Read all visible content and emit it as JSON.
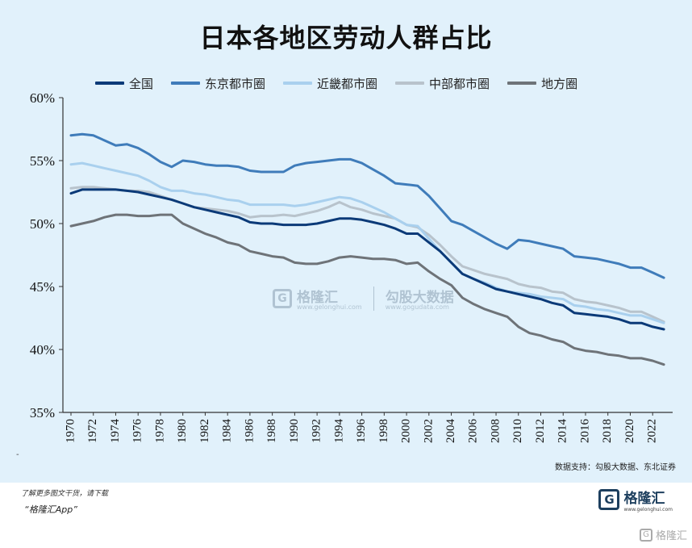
{
  "page": {
    "title": "日本各地区劳动人群占比",
    "source": "数据支持：勾股大数据、东北证券",
    "promo_line1": "了解更多图文干货，请下载",
    "promo_line2": "“格隆汇App”",
    "brand_name": "格隆汇",
    "brand_sub": "www.gelonghui.com",
    "corner_brand": "格隆汇",
    "corner_icon": "G",
    "dash_mark": "-"
  },
  "watermark": {
    "brand_icon": "G",
    "brand_name": "格隆汇",
    "brand_sub": "www.gelonghui.com",
    "second_name": "勾股大数据",
    "second_sub": "www.gogudata.com"
  },
  "chart_data": {
    "type": "line",
    "title": "日本各地区劳动人群占比",
    "xlabel": "",
    "ylabel": "",
    "ylim": [
      35,
      60
    ],
    "yticks": [
      "35%",
      "40%",
      "45%",
      "50%",
      "55%",
      "60%"
    ],
    "ytick_values": [
      35,
      40,
      45,
      50,
      55,
      60
    ],
    "xticks": [
      "1970",
      "1972",
      "1974",
      "1976",
      "1978",
      "1980",
      "1982",
      "1984",
      "1986",
      "1988",
      "1990",
      "1992",
      "1994",
      "1996",
      "1998",
      "2000",
      "2002",
      "2004",
      "2006",
      "2008",
      "2010",
      "2012",
      "2014",
      "2016",
      "2018",
      "2020",
      "2022"
    ],
    "x": [
      1970,
      1971,
      1972,
      1973,
      1974,
      1975,
      1976,
      1977,
      1978,
      1979,
      1980,
      1981,
      1982,
      1983,
      1984,
      1985,
      1986,
      1987,
      1988,
      1989,
      1990,
      1991,
      1992,
      1993,
      1994,
      1995,
      1996,
      1997,
      1998,
      1999,
      2000,
      2001,
      2002,
      2003,
      2004,
      2005,
      2006,
      2007,
      2008,
      2009,
      2010,
      2011,
      2012,
      2013,
      2014,
      2015,
      2016,
      2017,
      2018,
      2019,
      2020,
      2021,
      2022,
      2023
    ],
    "grid": false,
    "legend_position": "top",
    "series": [
      {
        "name": "全国",
        "color": "#0b3a78",
        "values": [
          52.4,
          52.7,
          52.7,
          52.7,
          52.7,
          52.6,
          52.5,
          52.3,
          52.1,
          51.9,
          51.6,
          51.3,
          51.1,
          50.9,
          50.7,
          50.5,
          50.1,
          50.0,
          50.0,
          49.9,
          49.9,
          49.9,
          50.0,
          50.2,
          50.4,
          50.4,
          50.3,
          50.1,
          49.9,
          49.6,
          49.2,
          49.2,
          48.5,
          47.8,
          46.9,
          46.0,
          45.6,
          45.2,
          44.8,
          44.6,
          44.4,
          44.2,
          44.0,
          43.7,
          43.5,
          42.9,
          42.8,
          42.7,
          42.6,
          42.4,
          42.1,
          42.1,
          41.8,
          41.6
        ]
      },
      {
        "name": "东京都市圈",
        "color": "#3f7cba",
        "values": [
          57.0,
          57.1,
          57.0,
          56.6,
          56.2,
          56.3,
          56.0,
          55.5,
          54.9,
          54.5,
          55.0,
          54.9,
          54.7,
          54.6,
          54.6,
          54.5,
          54.2,
          54.1,
          54.1,
          54.1,
          54.6,
          54.8,
          54.9,
          55.0,
          55.1,
          55.1,
          54.8,
          54.3,
          53.8,
          53.2,
          53.1,
          53.0,
          52.2,
          51.2,
          50.2,
          49.9,
          49.4,
          48.9,
          48.4,
          48.0,
          48.7,
          48.6,
          48.4,
          48.2,
          48.0,
          47.4,
          47.3,
          47.2,
          47.0,
          46.8,
          46.5,
          46.5,
          46.1,
          45.7
        ]
      },
      {
        "name": "近畿都市圈",
        "color": "#a9d0ee",
        "values": [
          54.7,
          54.8,
          54.6,
          54.4,
          54.2,
          54.0,
          53.8,
          53.4,
          52.9,
          52.6,
          52.6,
          52.4,
          52.3,
          52.1,
          51.9,
          51.8,
          51.5,
          51.5,
          51.5,
          51.5,
          51.4,
          51.5,
          51.7,
          51.9,
          52.1,
          52.0,
          51.7,
          51.3,
          50.9,
          50.4,
          49.9,
          49.8,
          48.8,
          47.8,
          46.9,
          46.0,
          45.6,
          45.3,
          44.9,
          44.6,
          44.5,
          44.4,
          44.2,
          44.1,
          44.0,
          43.5,
          43.4,
          43.2,
          43.1,
          42.9,
          42.7,
          42.7,
          42.4,
          42.1
        ]
      },
      {
        "name": "中部都市圈",
        "color": "#b8c3cc",
        "values": [
          52.8,
          52.9,
          52.9,
          52.8,
          52.7,
          52.6,
          52.6,
          52.5,
          52.2,
          51.9,
          51.6,
          51.3,
          51.2,
          51.1,
          51.0,
          50.8,
          50.5,
          50.6,
          50.6,
          50.7,
          50.6,
          50.8,
          51.0,
          51.3,
          51.7,
          51.3,
          51.1,
          50.8,
          50.6,
          50.4,
          49.9,
          49.7,
          49.1,
          48.3,
          47.4,
          46.6,
          46.3,
          46.0,
          45.8,
          45.6,
          45.2,
          45.0,
          44.9,
          44.6,
          44.5,
          44.0,
          43.8,
          43.7,
          43.5,
          43.3,
          43.0,
          43.0,
          42.6,
          42.2
        ]
      },
      {
        "name": "地方圈",
        "color": "#6e7378",
        "values": [
          49.8,
          50.0,
          50.2,
          50.5,
          50.7,
          50.7,
          50.6,
          50.6,
          50.7,
          50.7,
          50.0,
          49.6,
          49.2,
          48.9,
          48.5,
          48.3,
          47.8,
          47.6,
          47.4,
          47.3,
          46.9,
          46.8,
          46.8,
          47.0,
          47.3,
          47.4,
          47.3,
          47.2,
          47.2,
          47.1,
          46.8,
          46.9,
          46.2,
          45.6,
          45.1,
          44.1,
          43.6,
          43.2,
          42.9,
          42.6,
          41.8,
          41.3,
          41.1,
          40.8,
          40.6,
          40.1,
          39.9,
          39.8,
          39.6,
          39.5,
          39.3,
          39.3,
          39.1,
          38.8
        ]
      }
    ]
  }
}
